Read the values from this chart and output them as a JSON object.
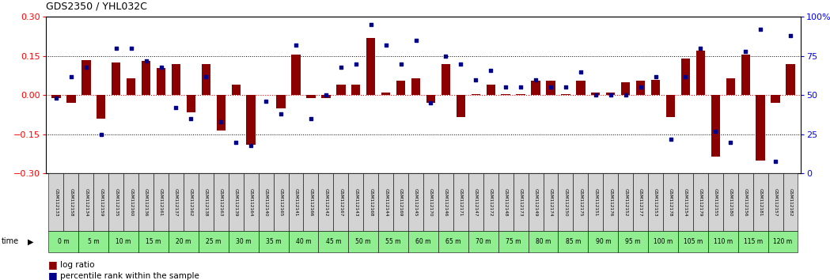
{
  "title": "GDS2350 / YHL032C",
  "gsm_labels": [
    "GSM112133",
    "GSM112158",
    "GSM112134",
    "GSM112159",
    "GSM112135",
    "GSM112160",
    "GSM112136",
    "GSM112161",
    "GSM112137",
    "GSM112162",
    "GSM112138",
    "GSM112163",
    "GSM112139",
    "GSM112164",
    "GSM112140",
    "GSM112165",
    "GSM112141",
    "GSM112166",
    "GSM112142",
    "GSM112167",
    "GSM112143",
    "GSM112168",
    "GSM112144",
    "GSM112169",
    "GSM112145",
    "GSM112170",
    "GSM112146",
    "GSM112171",
    "GSM112147",
    "GSM112172",
    "GSM112148",
    "GSM112173",
    "GSM112149",
    "GSM112174",
    "GSM112150",
    "GSM112175",
    "GSM112151",
    "GSM112176",
    "GSM112152",
    "GSM112177",
    "GSM112153",
    "GSM112178",
    "GSM112154",
    "GSM112179",
    "GSM112155",
    "GSM112180",
    "GSM112156",
    "GSM112181",
    "GSM112157",
    "GSM112182"
  ],
  "time_labels": [
    "0 m",
    "5 m",
    "10 m",
    "15 m",
    "20 m",
    "25 m",
    "30 m",
    "35 m",
    "40 m",
    "45 m",
    "50 m",
    "55 m",
    "60 m",
    "65 m",
    "70 m",
    "75 m",
    "80 m",
    "85 m",
    "90 m",
    "95 m",
    "100 m",
    "105 m",
    "110 m",
    "115 m",
    "120 m"
  ],
  "log_ratio": [
    -0.01,
    -0.03,
    0.135,
    -0.09,
    0.125,
    0.065,
    0.13,
    0.105,
    0.12,
    -0.065,
    0.12,
    -0.135,
    0.04,
    -0.19,
    0.0,
    -0.05,
    0.155,
    -0.01,
    -0.01,
    0.04,
    0.04,
    0.22,
    0.01,
    0.055,
    0.065,
    -0.03,
    0.12,
    -0.085,
    0.005,
    0.04,
    0.005,
    0.005,
    0.055,
    0.055,
    0.005,
    0.055,
    0.01,
    0.01,
    0.05,
    0.055,
    0.06,
    -0.085,
    0.14,
    0.17,
    -0.235,
    0.065,
    0.155,
    -0.25,
    -0.03,
    0.12
  ],
  "percentile": [
    48,
    62,
    68,
    25,
    80,
    80,
    72,
    68,
    42,
    35,
    62,
    33,
    20,
    18,
    46,
    38,
    82,
    35,
    50,
    68,
    70,
    95,
    82,
    70,
    85,
    45,
    75,
    70,
    60,
    66,
    55,
    55,
    60,
    55,
    55,
    65,
    50,
    50,
    50,
    55,
    62,
    22,
    62,
    80,
    27,
    20,
    78,
    92,
    8,
    88
  ],
  "ylim_left": [
    -0.3,
    0.3
  ],
  "ylim_right": [
    0,
    100
  ],
  "yticks_left": [
    -0.3,
    -0.15,
    0.0,
    0.15,
    0.3
  ],
  "yticks_right": [
    0,
    25,
    50,
    75,
    100
  ],
  "hline_dotted": [
    0.15,
    -0.15
  ],
  "bar_color": "#8B0000",
  "dot_color": "#00008B",
  "background_color": "#ffffff",
  "legend_bar_label": "log ratio",
  "legend_dot_label": "percentile rank within the sample",
  "time_row_color": "#90EE90",
  "gsm_row_color": "#D3D3D3",
  "title_fontsize": 9,
  "axis_fontsize": 8
}
